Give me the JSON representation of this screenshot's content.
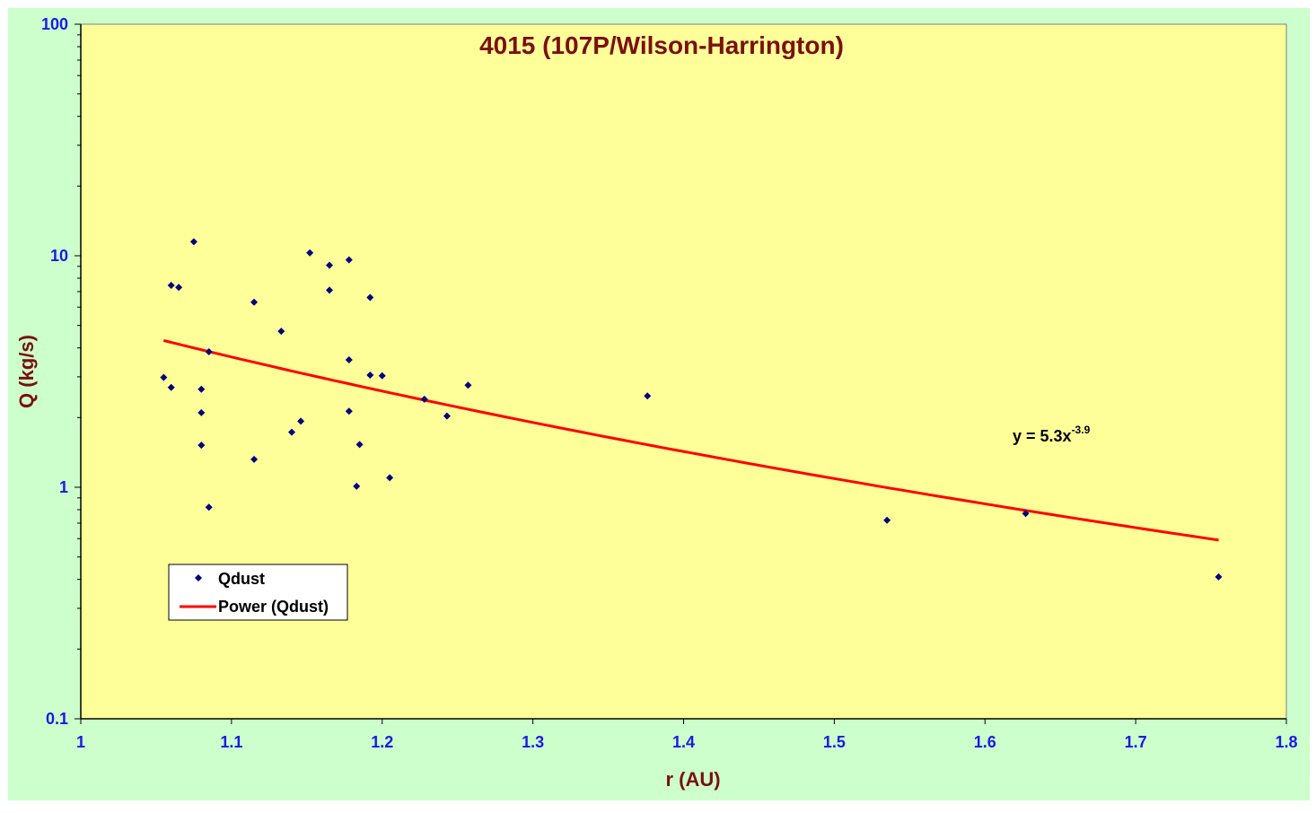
{
  "colors": {
    "outer_background": "#ccffcc",
    "plot_background": "#ffff99",
    "marker": "#000080",
    "trendline": "#ff0000",
    "title": "#7a1010",
    "tick_labels": "#1a1ae6"
  },
  "chart_data": {
    "type": "scatter",
    "title": "4015  (107P/Wilson-Harrington)",
    "xlabel": "r (AU)",
    "ylabel": "Q (kg/s)",
    "xlim": [
      1,
      1.8
    ],
    "ylim": [
      0.1,
      100
    ],
    "yscale": "log",
    "grid": false,
    "legend_position": "bottom-left",
    "x_ticks": [
      "1",
      "1.1",
      "1.2",
      "1.3",
      "1.4",
      "1.5",
      "1.6",
      "1.7",
      "1.8"
    ],
    "y_ticks": [
      "100",
      "10",
      "1",
      "0.1"
    ],
    "series": [
      {
        "name": "Qdust",
        "marker": "diamond",
        "points": [
          [
            1.055,
            2.98
          ],
          [
            1.06,
            7.45
          ],
          [
            1.065,
            7.3
          ],
          [
            1.06,
            2.7
          ],
          [
            1.075,
            11.5
          ],
          [
            1.08,
            2.65
          ],
          [
            1.08,
            2.1
          ],
          [
            1.08,
            1.52
          ],
          [
            1.085,
            3.85
          ],
          [
            1.085,
            0.82
          ],
          [
            1.115,
            6.3
          ],
          [
            1.115,
            1.32
          ],
          [
            1.133,
            4.72
          ],
          [
            1.14,
            1.73
          ],
          [
            1.146,
            1.93
          ],
          [
            1.152,
            10.3
          ],
          [
            1.165,
            9.1
          ],
          [
            1.165,
            7.1
          ],
          [
            1.178,
            9.6
          ],
          [
            1.178,
            3.55
          ],
          [
            1.178,
            2.13
          ],
          [
            1.183,
            1.01
          ],
          [
            1.185,
            1.53
          ],
          [
            1.192,
            6.6
          ],
          [
            1.192,
            3.05
          ],
          [
            1.2,
            3.03
          ],
          [
            1.205,
            1.1
          ],
          [
            1.228,
            2.4
          ],
          [
            1.243,
            2.03
          ],
          [
            1.257,
            2.76
          ],
          [
            1.376,
            2.48
          ],
          [
            1.535,
            0.72
          ],
          [
            1.627,
            0.77
          ],
          [
            1.755,
            0.41
          ]
        ]
      }
    ],
    "trendline": {
      "name": "Power (Qdust)",
      "type": "power",
      "coefficient": 5.3,
      "exponent": -3.9,
      "x_range": [
        1.055,
        1.755
      ],
      "equation_text": "y = 5.3x",
      "equation_exponent_text": "-3.9"
    },
    "legend": [
      "Qdust",
      "Power (Qdust)"
    ]
  }
}
